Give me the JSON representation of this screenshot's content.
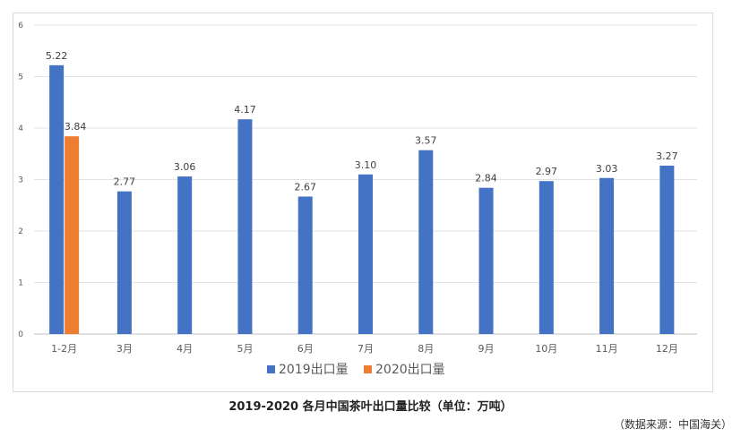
{
  "chart_data": {
    "type": "bar",
    "categories": [
      "1-2月",
      "3月",
      "4月",
      "5月",
      "6月",
      "7月",
      "8月",
      "9月",
      "10月",
      "11月",
      "12月"
    ],
    "series": [
      {
        "name": "2019出口量",
        "color": "#4472C4",
        "values": [
          5.22,
          2.77,
          3.06,
          4.17,
          2.67,
          3.1,
          3.57,
          2.84,
          2.97,
          3.03,
          3.27
        ],
        "labels": [
          "5.22",
          "2.77",
          "3.06",
          "4.17",
          "2.67",
          "3.10",
          "3.57",
          "2.84",
          "2.97",
          "3.03",
          "3.27"
        ]
      },
      {
        "name": "2020出口量",
        "color": "#ED7D31",
        "values": [
          3.84,
          null,
          null,
          null,
          null,
          null,
          null,
          null,
          null,
          null,
          null
        ],
        "labels": [
          "3.84",
          "",
          "",
          "",
          "",
          "",
          "",
          "",
          "",
          "",
          ""
        ]
      }
    ],
    "ylim": [
      0,
      6
    ],
    "yticks": [
      0,
      1,
      2,
      3,
      4,
      5,
      6
    ],
    "grid": true,
    "legend": "bottom",
    "title": "2019-2020 各月中国茶叶出口量比较（单位：万吨）"
  },
  "caption": "2019-2020 各月中国茶叶出口量比较（单位：万吨）",
  "source": "（数据来源：中国海关）"
}
